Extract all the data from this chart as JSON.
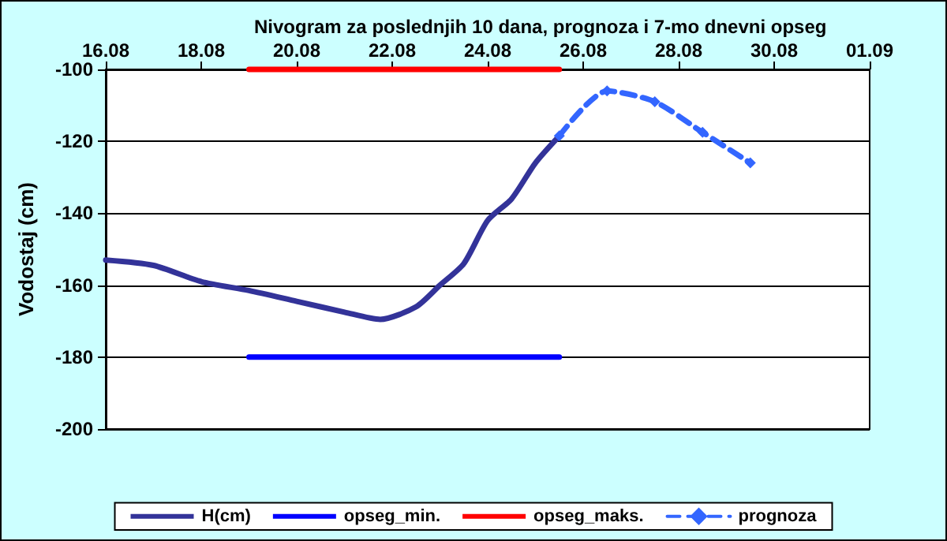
{
  "chart_data": {
    "type": "line",
    "title": "Nivogram za poslednjih 10 dana, prognoza i 7-mo dnevni opseg",
    "ylabel": "Vodostaj (cm)",
    "xlim": [
      "--08-16",
      "--09-01"
    ],
    "xticks": [
      {
        "value": "--08-16",
        "label": "16.08"
      },
      {
        "value": "--08-18",
        "label": "18.08"
      },
      {
        "value": "--08-20",
        "label": "20.08"
      },
      {
        "value": "--08-22",
        "label": "22.08"
      },
      {
        "value": "--08-24",
        "label": "24.08"
      },
      {
        "value": "--08-26",
        "label": "26.08"
      },
      {
        "value": "--08-28",
        "label": "28.08"
      },
      {
        "value": "--08-30",
        "label": "30.08"
      },
      {
        "value": "--09-01",
        "label": "01.09"
      }
    ],
    "ylim": [
      -200,
      -100
    ],
    "yticks": [
      -200,
      -180,
      -160,
      -140,
      -120,
      -100
    ],
    "grid": "y",
    "legend": "bottom",
    "series": [
      {
        "name": "H(cm)",
        "color": "#333399",
        "line_style": "solid",
        "marker": "none",
        "x": [
          "--08-16",
          "--08-17",
          "--08-18",
          "--08-19",
          "--08-20",
          "--08-21",
          "--08-21T18:00",
          "--08-22T12:00",
          "--08-23",
          "--08-23T12:00",
          "--08-24",
          "--08-24T12:00",
          "--08-25",
          "--08-25T12:00"
        ],
        "values": [
          -153,
          -154.5,
          -159,
          -161.5,
          -164.5,
          -167.5,
          -169.5,
          -166,
          -160,
          -154,
          -142,
          -136,
          -126,
          -118.5
        ]
      },
      {
        "name": "opseg_min.",
        "color": "#0000ff",
        "line_style": "solid",
        "marker": "none",
        "x": [
          "--08-19",
          "--08-25T12:00"
        ],
        "values": [
          -180,
          -180
        ]
      },
      {
        "name": "opseg_maks.",
        "color": "#ff0000",
        "line_style": "solid",
        "marker": "none",
        "x": [
          "--08-19",
          "--08-25T12:00"
        ],
        "values": [
          -100,
          -100
        ]
      },
      {
        "name": "prognoza",
        "color": "#3366ff",
        "line_style": "dashed",
        "marker": "diamond",
        "x": [
          "--08-25T12:00",
          "--08-26T12:00",
          "--08-27T12:00",
          "--08-28T12:00",
          "--08-29T12:00"
        ],
        "values": [
          -118.5,
          -106,
          -109,
          -117.5,
          -126
        ]
      }
    ]
  }
}
